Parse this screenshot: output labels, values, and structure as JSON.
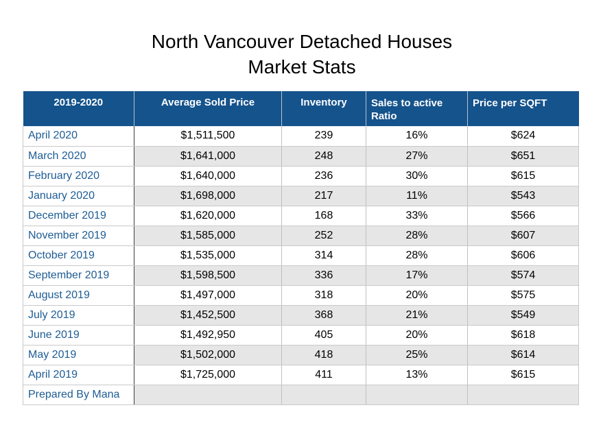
{
  "title": {
    "line1": "North Vancouver Detached Houses",
    "line2": "Market Stats"
  },
  "table": {
    "headers": [
      "2019-2020",
      "Average Sold Price",
      "Inventory",
      "Sales to active Ratio",
      "Price per SQFT"
    ],
    "rows": [
      [
        "April 2020",
        "$1,511,500",
        "239",
        "16%",
        "$624"
      ],
      [
        "March 2020",
        "$1,641,000",
        "248",
        "27%",
        "$651"
      ],
      [
        "February 2020",
        "$1,640,000",
        "236",
        "30%",
        "$615"
      ],
      [
        "January 2020",
        "$1,698,000",
        "217",
        "11%",
        "$543"
      ],
      [
        "December 2019",
        "$1,620,000",
        "168",
        "33%",
        "$566"
      ],
      [
        "November 2019",
        "$1,585,000",
        "252",
        "28%",
        "$607"
      ],
      [
        "October 2019",
        "$1,535,000",
        "314",
        "28%",
        "$606"
      ],
      [
        "September 2019",
        "$1,598,500",
        "336",
        "17%",
        "$574"
      ],
      [
        "August 2019",
        "$1,497,000",
        "318",
        "20%",
        "$575"
      ],
      [
        "July 2019",
        "$1,452,500",
        "368",
        "21%",
        "$549"
      ],
      [
        "June 2019",
        "$1,492,950",
        "405",
        "20%",
        "$618"
      ],
      [
        "May 2019",
        "$1,502,000",
        "418",
        "25%",
        "$614"
      ],
      [
        "April 2019",
        "$1,725,000",
        "411",
        "13%",
        "$615"
      ],
      [
        "Prepared By Mana",
        "",
        "",
        "",
        ""
      ]
    ]
  },
  "colors": {
    "header_background": "#15538c",
    "header_text": "#ffffff",
    "period_text": "#1d5c94",
    "alternate_row_background": "#e6e6e6",
    "row_border": "#c9c9c9",
    "header_column_divider": "#3d3d3d"
  }
}
